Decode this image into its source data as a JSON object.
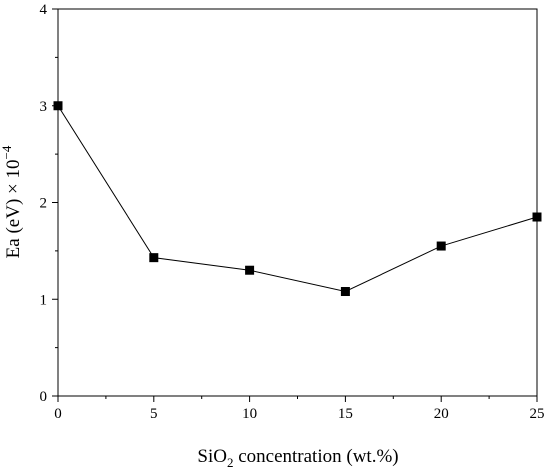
{
  "chart_data": {
    "type": "line",
    "xlabel": "SiO2 concentration (wt.%)",
    "xlabel_parts": {
      "pre": "SiO",
      "sub": "2",
      "post": " concentration (wt.%)"
    },
    "ylabel": "Ea (eV) × 10−4",
    "ylabel_parts": {
      "pre": "Ea (eV) × 10",
      "sup": "−4"
    },
    "xlim": [
      0,
      25
    ],
    "ylim": [
      0,
      4
    ],
    "x_ticks": [
      0,
      5,
      10,
      15,
      20,
      25
    ],
    "y_ticks": [
      0,
      1,
      2,
      3,
      4
    ],
    "grid": false,
    "legend": "none",
    "marker": "square",
    "color": "#000000",
    "series": [
      {
        "x": [
          0,
          5,
          10,
          15,
          20,
          25
        ],
        "values": [
          3.0,
          1.43,
          1.3,
          1.08,
          1.55,
          1.85
        ]
      }
    ]
  }
}
